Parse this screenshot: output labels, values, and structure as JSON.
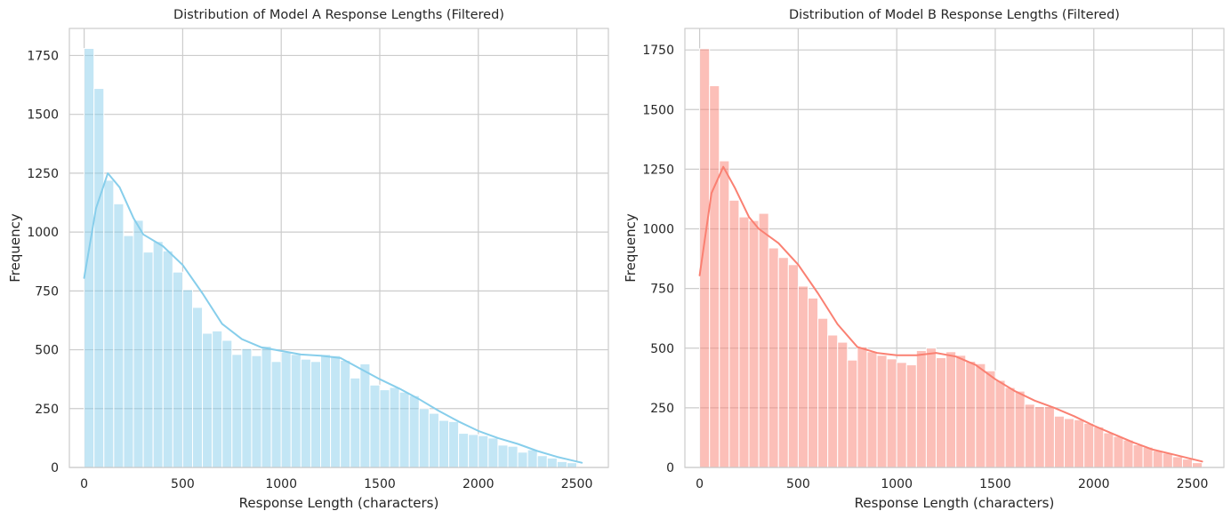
{
  "chart_data": [
    {
      "type": "bar",
      "title": "Distribution of Model A Response Lengths (Filtered)",
      "xlabel": "Response Length (characters)",
      "ylabel": "Frequency",
      "xlim": [
        -75,
        2660
      ],
      "ylim": [
        0,
        1865
      ],
      "xticks": [
        0,
        500,
        1000,
        1500,
        2000,
        2500
      ],
      "yticks": [
        0,
        250,
        500,
        750,
        1000,
        1250,
        1500,
        1750
      ],
      "grid": true,
      "color": "#87ceeb",
      "bin_start": 0,
      "bin_width": 50,
      "bin_counts": [
        1780,
        1610,
        1220,
        1120,
        985,
        1050,
        915,
        960,
        920,
        830,
        755,
        680,
        570,
        580,
        540,
        480,
        505,
        475,
        515,
        450,
        490,
        480,
        460,
        450,
        480,
        475,
        455,
        380,
        440,
        350,
        330,
        340,
        320,
        305,
        250,
        230,
        200,
        195,
        145,
        140,
        135,
        125,
        95,
        90,
        65,
        75,
        50,
        40,
        25,
        20
      ],
      "kde_x": [
        0,
        60,
        120,
        180,
        250,
        300,
        400,
        500,
        600,
        700,
        800,
        900,
        1000,
        1100,
        1200,
        1300,
        1400,
        1500,
        1600,
        1700,
        1800,
        1900,
        2000,
        2100,
        2200,
        2300,
        2400,
        2525
      ],
      "kde_y": [
        805,
        1100,
        1250,
        1190,
        1060,
        990,
        940,
        860,
        740,
        610,
        545,
        510,
        495,
        480,
        475,
        465,
        420,
        375,
        335,
        290,
        240,
        195,
        155,
        125,
        100,
        70,
        45,
        20
      ]
    },
    {
      "type": "bar",
      "title": "Distribution of Model B Response Lengths (Filtered)",
      "xlabel": "Response Length (characters)",
      "ylabel": "Frequency",
      "xlim": [
        -75,
        2660
      ],
      "ylim": [
        0,
        1840
      ],
      "xticks": [
        0,
        500,
        1000,
        1500,
        2000,
        2500
      ],
      "yticks": [
        0,
        250,
        500,
        750,
        1000,
        1250,
        1500,
        1750
      ],
      "grid": true,
      "color": "#fa8072",
      "bin_start": 0,
      "bin_width": 50,
      "bin_counts": [
        1755,
        1600,
        1285,
        1120,
        1050,
        1035,
        1065,
        920,
        880,
        850,
        760,
        710,
        625,
        555,
        525,
        450,
        505,
        485,
        470,
        455,
        440,
        430,
        490,
        500,
        460,
        485,
        470,
        445,
        435,
        405,
        365,
        335,
        320,
        265,
        255,
        255,
        215,
        205,
        200,
        185,
        170,
        145,
        130,
        115,
        95,
        85,
        70,
        60,
        45,
        35,
        20
      ],
      "kde_x": [
        0,
        60,
        120,
        180,
        250,
        300,
        400,
        500,
        600,
        700,
        800,
        900,
        1000,
        1100,
        1200,
        1300,
        1400,
        1500,
        1600,
        1700,
        1800,
        1900,
        2000,
        2100,
        2200,
        2300,
        2400,
        2550
      ],
      "kde_y": [
        805,
        1150,
        1260,
        1170,
        1050,
        1000,
        940,
        850,
        730,
        600,
        505,
        480,
        470,
        470,
        480,
        465,
        430,
        370,
        320,
        280,
        250,
        215,
        175,
        140,
        105,
        75,
        55,
        25
      ]
    }
  ]
}
